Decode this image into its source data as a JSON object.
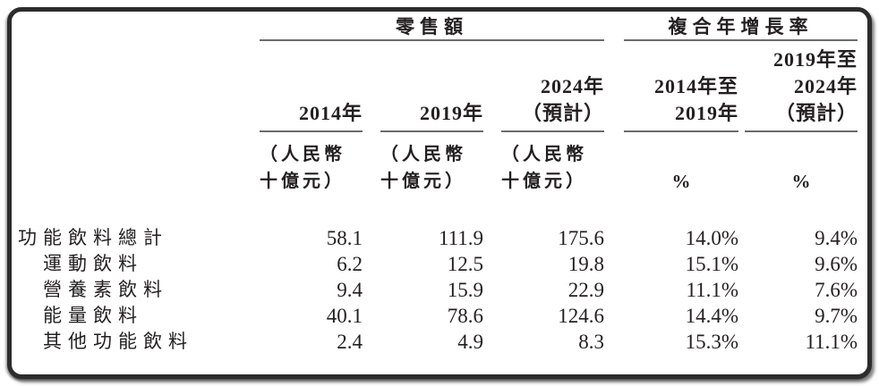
{
  "table": {
    "group_headers": [
      {
        "label": "零售額"
      },
      {
        "label": "複合年增長率"
      }
    ],
    "columns": [
      {
        "header_lines": [
          "2014年"
        ],
        "unit_lines": [
          "（人民幣",
          "十億元）"
        ]
      },
      {
        "header_lines": [
          "2019年"
        ],
        "unit_lines": [
          "（人民幣",
          "十億元）"
        ]
      },
      {
        "header_lines": [
          "2024年",
          "（預計）"
        ],
        "unit_lines": [
          "（人民幣",
          "十億元）"
        ]
      },
      {
        "header_lines": [
          "2014年至",
          "2019年"
        ],
        "unit": "%"
      },
      {
        "header_lines": [
          "2019年至",
          "2024年",
          "（預計）"
        ],
        "unit": "%"
      }
    ],
    "rows": [
      {
        "label": "功能飲料總計",
        "indent": false,
        "values": [
          "58.1",
          "111.9",
          "175.6",
          "14.0%",
          "9.4%"
        ]
      },
      {
        "label": "運動飲料",
        "indent": true,
        "values": [
          "6.2",
          "12.5",
          "19.8",
          "15.1%",
          "9.6%"
        ]
      },
      {
        "label": "營養素飲料",
        "indent": true,
        "values": [
          "9.4",
          "15.9",
          "22.9",
          "11.1%",
          "7.6%"
        ]
      },
      {
        "label": "能量飲料",
        "indent": true,
        "values": [
          "40.1",
          "78.6",
          "124.6",
          "14.4%",
          "9.7%"
        ]
      },
      {
        "label": "其他功能飲料",
        "indent": true,
        "values": [
          "2.4",
          "4.9",
          "8.3",
          "15.3%",
          "11.1%"
        ]
      }
    ]
  },
  "colors": {
    "text": "#231f20",
    "rule_line": "#6b6b6b",
    "frame_border": "#2c2c2c",
    "background": "#ffffff"
  }
}
